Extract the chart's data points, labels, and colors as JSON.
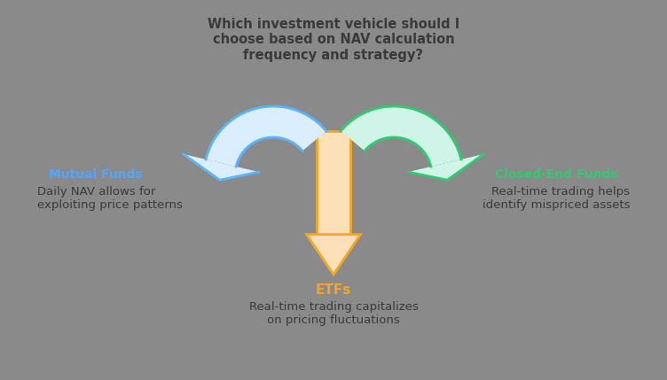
{
  "bg_color": "#8a8a8a",
  "title_text": "Which investment vehicle should I\nchoose based on NAV calculation\nfrequency and strategy?",
  "title_color": "#3a3a3a",
  "title_fontsize": 10.5,
  "mutual_funds_label": "Mutual Funds",
  "mutual_funds_color": "#4da6ff",
  "mutual_funds_desc": "Daily NAV allows for\nexploiting price patterns",
  "etf_label": "ETFs",
  "etf_color": "#f5a623",
  "etf_desc": "Real-time trading capitalizes\non pricing fluctuations",
  "closed_end_label": "Closed-End Funds",
  "closed_end_color": "#2ecc71",
  "closed_end_desc": "Real-time trading helps\nidentify mispriced assets",
  "desc_color": "#3a3a3a",
  "desc_fontsize": 9.5,
  "arrow_orange_fill": "#fce0b8",
  "arrow_orange_edge": "#f5a623",
  "arrow_blue_fill": "#daeeff",
  "arrow_blue_edge": "#5ab4ff",
  "arrow_green_fill": "#d0f5e8",
  "arrow_green_edge": "#2ecc71"
}
